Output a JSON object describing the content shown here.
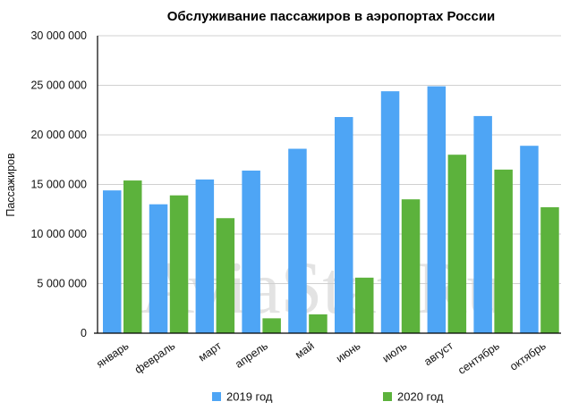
{
  "chart_data": {
    "type": "bar",
    "title": "Обслуживание пассажиров в аэропортах России",
    "ylabel": "Пассажиров",
    "xlabel": "",
    "categories": [
      "январь",
      "февраль",
      "март",
      "апрель",
      "май",
      "июнь",
      "июль",
      "август",
      "сентябрь",
      "октябрь"
    ],
    "series": [
      {
        "name": "2019 год",
        "color": "#4ea5f5",
        "values": [
          14400000,
          13000000,
          15500000,
          16400000,
          18600000,
          21800000,
          24400000,
          24900000,
          21900000,
          18900000
        ]
      },
      {
        "name": "2020 год",
        "color": "#5cb23c",
        "values": [
          15400000,
          13900000,
          11600000,
          1500000,
          1900000,
          5600000,
          13500000,
          18000000,
          16500000,
          12700000
        ]
      }
    ],
    "ylim": [
      0,
      30000000
    ],
    "yticks": [
      0,
      5000000,
      10000000,
      15000000,
      20000000,
      25000000,
      30000000
    ],
    "ytick_labels": [
      "0",
      "5 000 000",
      "10 000 000",
      "15 000 000",
      "20 000 000",
      "25 000 000",
      "30 000 000"
    ],
    "grid": true,
    "legend_position": "bottom",
    "axis_color": "#000000",
    "grid_color": "#d0d0d0"
  },
  "watermark": "AviaStat.Ru"
}
